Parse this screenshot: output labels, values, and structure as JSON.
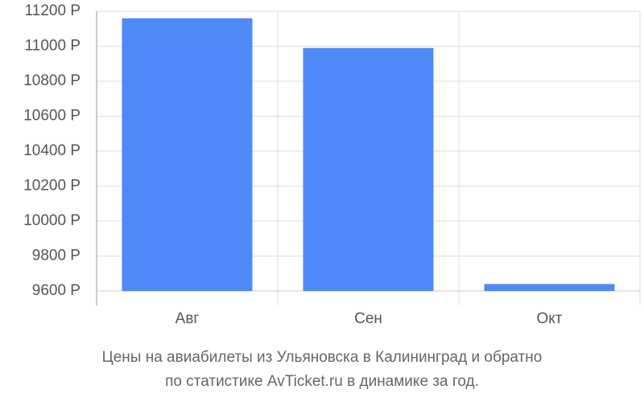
{
  "chart_data": {
    "type": "bar",
    "title": [
      "Цены на авиабилеты из Ульяновска в Калининград и обратно",
      "по статистике AvTicket.ru в динамике за год."
    ],
    "categories": [
      "Авг",
      "Сен",
      "Окт"
    ],
    "values": [
      11160,
      10990,
      9640
    ],
    "color": "#4d8af8",
    "ylim": [
      9600,
      11200
    ],
    "yticks": [
      {
        "value": 9600,
        "label": "9600 Р"
      },
      {
        "value": 9800,
        "label": "9800 Р"
      },
      {
        "value": 10000,
        "label": "10000 Р"
      },
      {
        "value": 10200,
        "label": "10200 Р"
      },
      {
        "value": 10400,
        "label": "10400 Р"
      },
      {
        "value": 10600,
        "label": "10600 Р"
      },
      {
        "value": 10800,
        "label": "10800 Р"
      },
      {
        "value": 11000,
        "label": "11000 Р"
      },
      {
        "value": 11200,
        "label": "11200 Р"
      }
    ],
    "grid": true
  }
}
